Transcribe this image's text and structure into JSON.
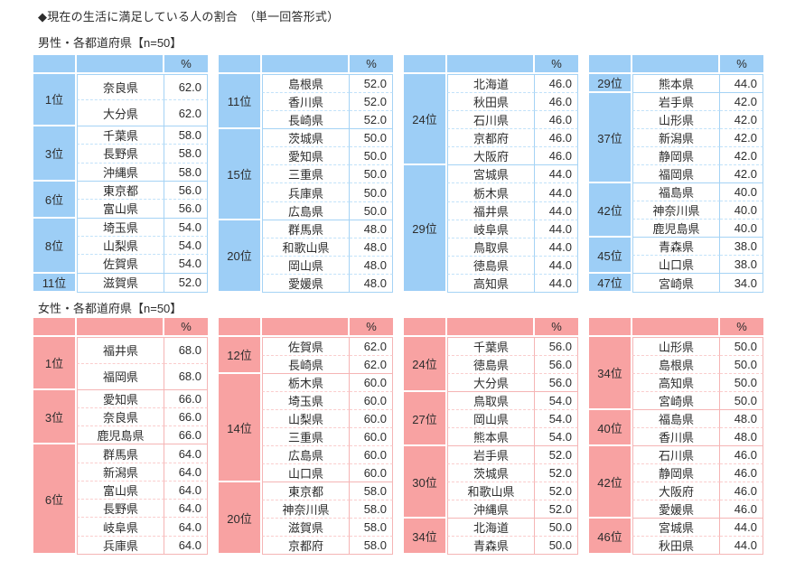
{
  "title": "◆現在の生活に満足している人の割合　（単一回答形式）",
  "percent_label": "%",
  "themes": {
    "male": {
      "accent": "#9DCEF6",
      "border": "#A5D3F5",
      "divider": "#C2E2F9"
    },
    "female": {
      "accent": "#F8A2A2",
      "border": "#F5B5B5",
      "divider": "#FACDCD"
    }
  },
  "sections": [
    {
      "id": "male",
      "subtitle": "男性・各都道府県【n=50】",
      "tables": [
        {
          "groups": [
            {
              "rank": "1位",
              "tall": true,
              "rows": [
                {
                  "pref": "奈良県",
                  "value": "62.0"
                },
                {
                  "pref": "大分県",
                  "value": "62.0"
                }
              ]
            },
            {
              "rank": "3位",
              "rows": [
                {
                  "pref": "千葉県",
                  "value": "58.0"
                },
                {
                  "pref": "長野県",
                  "value": "58.0"
                },
                {
                  "pref": "沖縄県",
                  "value": "58.0"
                }
              ]
            },
            {
              "rank": "6位",
              "rows": [
                {
                  "pref": "東京都",
                  "value": "56.0"
                },
                {
                  "pref": "富山県",
                  "value": "56.0"
                }
              ]
            },
            {
              "rank": "8位",
              "rows": [
                {
                  "pref": "埼玉県",
                  "value": "54.0"
                },
                {
                  "pref": "山梨県",
                  "value": "54.0"
                },
                {
                  "pref": "佐賀県",
                  "value": "54.0"
                }
              ]
            },
            {
              "rank": "11位",
              "rows": [
                {
                  "pref": "滋賀県",
                  "value": "52.0"
                }
              ]
            }
          ]
        },
        {
          "groups": [
            {
              "rank": "11位",
              "rows": [
                {
                  "pref": "島根県",
                  "value": "52.0"
                },
                {
                  "pref": "香川県",
                  "value": "52.0"
                },
                {
                  "pref": "長崎県",
                  "value": "52.0"
                }
              ]
            },
            {
              "rank": "15位",
              "rows": [
                {
                  "pref": "茨城県",
                  "value": "50.0"
                },
                {
                  "pref": "愛知県",
                  "value": "50.0"
                },
                {
                  "pref": "三重県",
                  "value": "50.0"
                },
                {
                  "pref": "兵庫県",
                  "value": "50.0"
                },
                {
                  "pref": "広島県",
                  "value": "50.0"
                }
              ]
            },
            {
              "rank": "20位",
              "rows": [
                {
                  "pref": "群馬県",
                  "value": "48.0"
                },
                {
                  "pref": "和歌山県",
                  "value": "48.0"
                },
                {
                  "pref": "岡山県",
                  "value": "48.0"
                },
                {
                  "pref": "愛媛県",
                  "value": "48.0"
                }
              ]
            }
          ]
        },
        {
          "groups": [
            {
              "rank": "24位",
              "rows": [
                {
                  "pref": "北海道",
                  "value": "46.0"
                },
                {
                  "pref": "秋田県",
                  "value": "46.0"
                },
                {
                  "pref": "石川県",
                  "value": "46.0"
                },
                {
                  "pref": "京都府",
                  "value": "46.0"
                },
                {
                  "pref": "大阪府",
                  "value": "46.0"
                }
              ]
            },
            {
              "rank": "29位",
              "rows": [
                {
                  "pref": "宮城県",
                  "value": "44.0"
                },
                {
                  "pref": "栃木県",
                  "value": "44.0"
                },
                {
                  "pref": "福井県",
                  "value": "44.0"
                },
                {
                  "pref": "岐阜県",
                  "value": "44.0"
                },
                {
                  "pref": "鳥取県",
                  "value": "44.0"
                },
                {
                  "pref": "徳島県",
                  "value": "44.0"
                },
                {
                  "pref": "高知県",
                  "value": "44.0"
                }
              ]
            }
          ]
        },
        {
          "groups": [
            {
              "rank": "29位",
              "rows": [
                {
                  "pref": "熊本県",
                  "value": "44.0"
                }
              ]
            },
            {
              "rank": "37位",
              "rows": [
                {
                  "pref": "岩手県",
                  "value": "42.0"
                },
                {
                  "pref": "山形県",
                  "value": "42.0"
                },
                {
                  "pref": "新潟県",
                  "value": "42.0"
                },
                {
                  "pref": "静岡県",
                  "value": "42.0"
                },
                {
                  "pref": "福岡県",
                  "value": "42.0"
                }
              ]
            },
            {
              "rank": "42位",
              "rows": [
                {
                  "pref": "福島県",
                  "value": "40.0"
                },
                {
                  "pref": "神奈川県",
                  "value": "40.0"
                },
                {
                  "pref": "鹿児島県",
                  "value": "40.0"
                }
              ]
            },
            {
              "rank": "45位",
              "rows": [
                {
                  "pref": "青森県",
                  "value": "38.0"
                },
                {
                  "pref": "山口県",
                  "value": "38.0"
                }
              ]
            },
            {
              "rank": "47位",
              "rows": [
                {
                  "pref": "宮崎県",
                  "value": "34.0"
                }
              ]
            }
          ]
        }
      ]
    },
    {
      "id": "female",
      "subtitle": "女性・各都道府県【n=50】",
      "tables": [
        {
          "groups": [
            {
              "rank": "1位",
              "tall": true,
              "rows": [
                {
                  "pref": "福井県",
                  "value": "68.0"
                },
                {
                  "pref": "福岡県",
                  "value": "68.0"
                }
              ]
            },
            {
              "rank": "3位",
              "rows": [
                {
                  "pref": "愛知県",
                  "value": "66.0"
                },
                {
                  "pref": "奈良県",
                  "value": "66.0"
                },
                {
                  "pref": "鹿児島県",
                  "value": "66.0"
                }
              ]
            },
            {
              "rank": "6位",
              "rows": [
                {
                  "pref": "群馬県",
                  "value": "64.0"
                },
                {
                  "pref": "新潟県",
                  "value": "64.0"
                },
                {
                  "pref": "富山県",
                  "value": "64.0"
                },
                {
                  "pref": "長野県",
                  "value": "64.0"
                },
                {
                  "pref": "岐阜県",
                  "value": "64.0"
                },
                {
                  "pref": "兵庫県",
                  "value": "64.0"
                }
              ]
            }
          ]
        },
        {
          "groups": [
            {
              "rank": "12位",
              "rows": [
                {
                  "pref": "佐賀県",
                  "value": "62.0"
                },
                {
                  "pref": "長崎県",
                  "value": "62.0"
                }
              ]
            },
            {
              "rank": "14位",
              "rows": [
                {
                  "pref": "栃木県",
                  "value": "60.0"
                },
                {
                  "pref": "埼玉県",
                  "value": "60.0"
                },
                {
                  "pref": "山梨県",
                  "value": "60.0"
                },
                {
                  "pref": "三重県",
                  "value": "60.0"
                },
                {
                  "pref": "広島県",
                  "value": "60.0"
                },
                {
                  "pref": "山口県",
                  "value": "60.0"
                }
              ]
            },
            {
              "rank": "20位",
              "rows": [
                {
                  "pref": "東京都",
                  "value": "58.0"
                },
                {
                  "pref": "神奈川県",
                  "value": "58.0"
                },
                {
                  "pref": "滋賀県",
                  "value": "58.0"
                },
                {
                  "pref": "京都府",
                  "value": "58.0"
                }
              ]
            }
          ]
        },
        {
          "groups": [
            {
              "rank": "24位",
              "rows": [
                {
                  "pref": "千葉県",
                  "value": "56.0"
                },
                {
                  "pref": "徳島県",
                  "value": "56.0"
                },
                {
                  "pref": "大分県",
                  "value": "56.0"
                }
              ]
            },
            {
              "rank": "27位",
              "rows": [
                {
                  "pref": "鳥取県",
                  "value": "54.0"
                },
                {
                  "pref": "岡山県",
                  "value": "54.0"
                },
                {
                  "pref": "熊本県",
                  "value": "54.0"
                }
              ]
            },
            {
              "rank": "30位",
              "rows": [
                {
                  "pref": "岩手県",
                  "value": "52.0"
                },
                {
                  "pref": "茨城県",
                  "value": "52.0"
                },
                {
                  "pref": "和歌山県",
                  "value": "52.0"
                },
                {
                  "pref": "沖縄県",
                  "value": "52.0"
                }
              ]
            },
            {
              "rank": "34位",
              "rows": [
                {
                  "pref": "北海道",
                  "value": "50.0"
                },
                {
                  "pref": "青森県",
                  "value": "50.0"
                }
              ]
            }
          ]
        },
        {
          "groups": [
            {
              "rank": "34位",
              "rows": [
                {
                  "pref": "山形県",
                  "value": "50.0"
                },
                {
                  "pref": "島根県",
                  "value": "50.0"
                },
                {
                  "pref": "高知県",
                  "value": "50.0"
                },
                {
                  "pref": "宮崎県",
                  "value": "50.0"
                }
              ]
            },
            {
              "rank": "40位",
              "rows": [
                {
                  "pref": "福島県",
                  "value": "48.0"
                },
                {
                  "pref": "香川県",
                  "value": "48.0"
                }
              ]
            },
            {
              "rank": "42位",
              "rows": [
                {
                  "pref": "石川県",
                  "value": "46.0"
                },
                {
                  "pref": "静岡県",
                  "value": "46.0"
                },
                {
                  "pref": "大阪府",
                  "value": "46.0"
                },
                {
                  "pref": "愛媛県",
                  "value": "46.0"
                }
              ]
            },
            {
              "rank": "46位",
              "rows": [
                {
                  "pref": "宮城県",
                  "value": "44.0"
                },
                {
                  "pref": "秋田県",
                  "value": "44.0"
                }
              ]
            }
          ]
        }
      ]
    }
  ]
}
